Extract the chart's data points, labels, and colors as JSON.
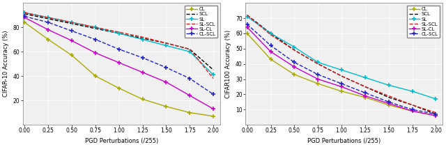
{
  "x": [
    0.0,
    0.25,
    0.5,
    0.75,
    1.0,
    1.25,
    1.5,
    1.75,
    2.0
  ],
  "cifar10": {
    "CL": [
      84,
      70,
      57,
      40,
      30,
      21,
      15,
      10,
      7
    ],
    "SCL": [
      91,
      87,
      83,
      79,
      75,
      71,
      67,
      62,
      45
    ],
    "SL": [
      92,
      88,
      84,
      80,
      75,
      70,
      65,
      60,
      41
    ],
    "SL-SCL": [
      92,
      88,
      84,
      80,
      76,
      72,
      67,
      62,
      38
    ],
    "SL-CL": [
      88,
      78,
      69,
      59,
      51,
      43,
      35,
      24,
      13
    ],
    "CL-SCL": [
      89,
      84,
      77,
      70,
      62,
      55,
      47,
      38,
      25
    ]
  },
  "cifar100": {
    "CL": [
      60,
      43,
      33,
      27,
      22,
      18,
      13,
      9,
      6
    ],
    "SCL": [
      72,
      60,
      49,
      40,
      32,
      25,
      18,
      13,
      7
    ],
    "SL": [
      71,
      60,
      51,
      41,
      36,
      31,
      26,
      22,
      17
    ],
    "SL-SCL": [
      72,
      59,
      49,
      40,
      32,
      25,
      19,
      13,
      8
    ],
    "SL-CL": [
      64,
      48,
      38,
      30,
      25,
      19,
      14,
      9,
      6
    ],
    "CL-SCL": [
      66,
      52,
      41,
      33,
      27,
      21,
      15,
      10,
      7
    ]
  },
  "colors": {
    "CL": "#aaaa00",
    "SCL": "#000000",
    "SL": "#00bbcc",
    "SL-SCL": "#dd2222",
    "SL-CL": "#cc00cc",
    "CL-SCL": "#2222cc"
  },
  "linestyles": {
    "CL": "-",
    "SCL": "--",
    "SL": "-",
    "SL-SCL": "--",
    "SL-CL": "-",
    "CL-SCL": "--"
  },
  "markers": {
    "CL": "+",
    "SCL": "",
    "SL": "+",
    "SL-SCL": "",
    "SL-CL": "+",
    "CL-SCL": "+"
  },
  "ylim_cifar10": [
    0,
    100
  ],
  "ylim_cifar100": [
    0,
    80
  ],
  "ylabel_cifar10": "CIFAR-10 Accuracy (%)",
  "ylabel_cifar100": "CIFAR100 Accuracy (%)",
  "xlabel": "PGD Perturbations (/255)",
  "xticks": [
    0.0,
    0.25,
    0.5,
    0.75,
    1.0,
    1.25,
    1.5,
    1.75,
    2.0
  ],
  "yticks_cifar10": [
    20,
    40,
    60,
    80
  ],
  "yticks_cifar100": [
    10,
    20,
    30,
    40,
    50,
    60,
    70
  ],
  "series_order": [
    "CL",
    "SCL",
    "SL",
    "SL-SCL",
    "SL-CL",
    "CL-SCL"
  ]
}
